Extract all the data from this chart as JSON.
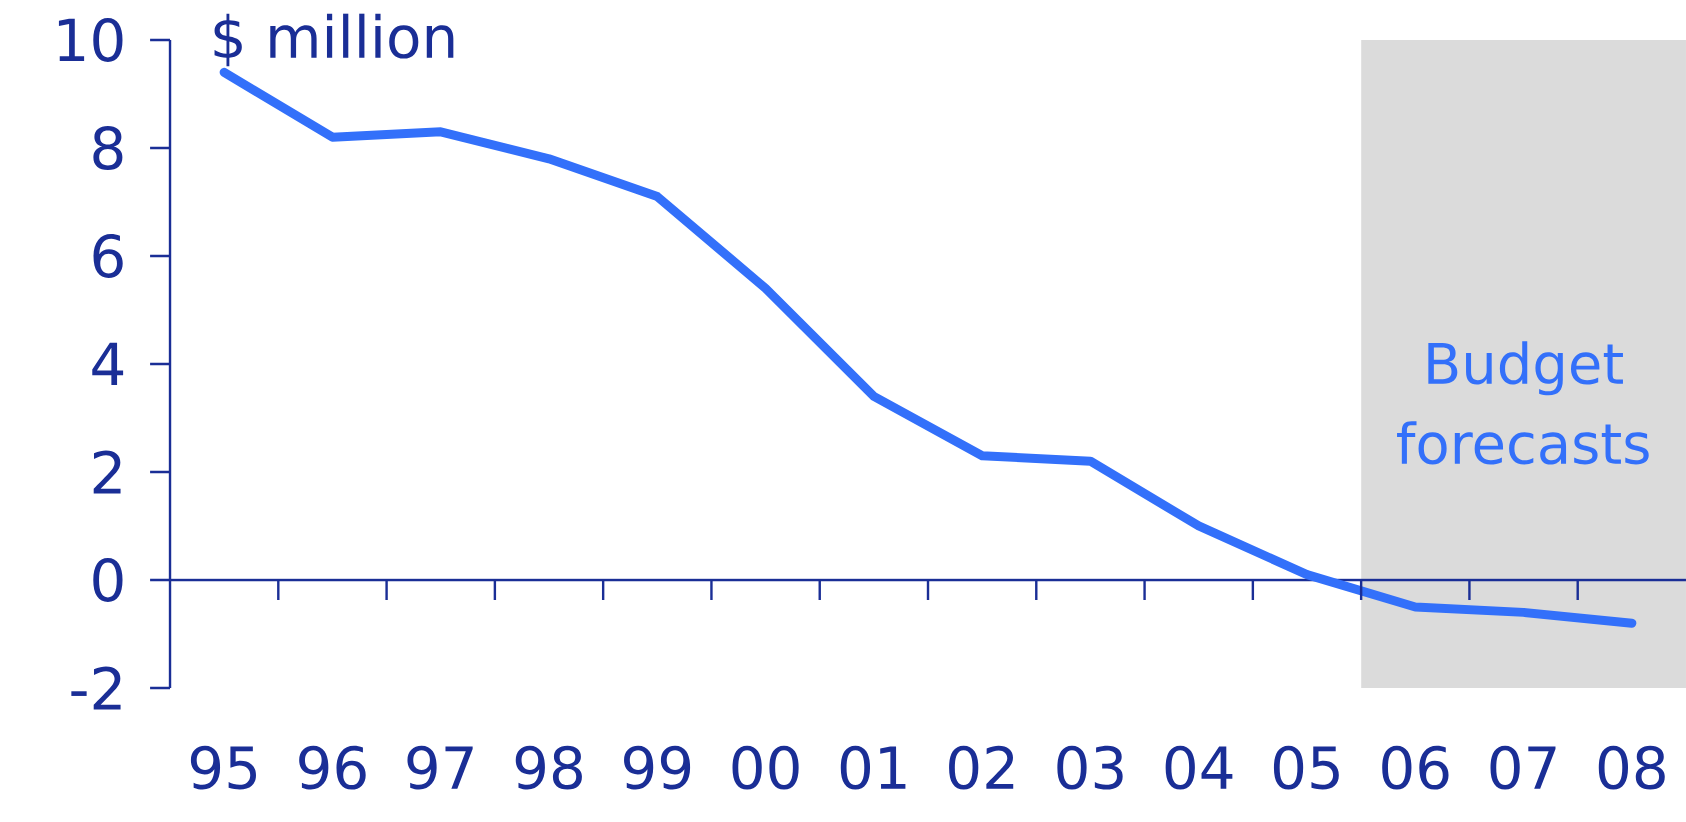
{
  "chart_data": {
    "type": "line",
    "ylabel": "$ million",
    "x": [
      1995,
      1996,
      1997,
      1998,
      1999,
      2000,
      2001,
      2002,
      2003,
      2004,
      2005,
      2006,
      2007,
      2008
    ],
    "values": [
      9.4,
      8.2,
      8.3,
      7.8,
      7.1,
      5.4,
      3.4,
      2.3,
      2.2,
      1.0,
      0.1,
      -0.5,
      -0.6,
      -0.8
    ],
    "color": "#3370fa",
    "xlim": [
      1994.5,
      2008.5
    ],
    "ylim": [
      -2,
      10
    ],
    "xticks": [
      {
        "value": 1995,
        "label": "95"
      },
      {
        "value": 1996,
        "label": "96"
      },
      {
        "value": 1997,
        "label": "97"
      },
      {
        "value": 1998,
        "label": "98"
      },
      {
        "value": 1999,
        "label": "99"
      },
      {
        "value": 2000,
        "label": "00"
      },
      {
        "value": 2001,
        "label": "01"
      },
      {
        "value": 2002,
        "label": "02"
      },
      {
        "value": 2003,
        "label": "03"
      },
      {
        "value": 2004,
        "label": "04"
      },
      {
        "value": 2005,
        "label": "05"
      },
      {
        "value": 2006,
        "label": "06"
      },
      {
        "value": 2007,
        "label": "07"
      },
      {
        "value": 2008,
        "label": "08"
      },
      {
        "value": 1995.5,
        "label": null
      },
      {
        "value": 1996.5,
        "label": null
      },
      {
        "value": 1997.5,
        "label": null
      },
      {
        "value": 1998.5,
        "label": null
      },
      {
        "value": 1999.5,
        "label": null
      },
      {
        "value": 2000.5,
        "label": null
      },
      {
        "value": 2001.5,
        "label": null
      },
      {
        "value": 2002.5,
        "label": null
      },
      {
        "value": 2003.5,
        "label": null
      },
      {
        "value": 2004.5,
        "label": null
      },
      {
        "value": 2005.5,
        "label": null
      },
      {
        "value": 2006.5,
        "label": null
      },
      {
        "value": 2007.5,
        "label": null
      }
    ],
    "yticks": [
      -2,
      0,
      2,
      4,
      6,
      8,
      10
    ],
    "ref_lines": [
      {
        "axis": "y",
        "value": 0,
        "color": "#1a2e96"
      }
    ],
    "bands": [
      {
        "axis": "x",
        "from": 2005.5,
        "to": 2008.5,
        "label": "Budget forecasts",
        "color": "#dbdbdb"
      }
    ]
  }
}
